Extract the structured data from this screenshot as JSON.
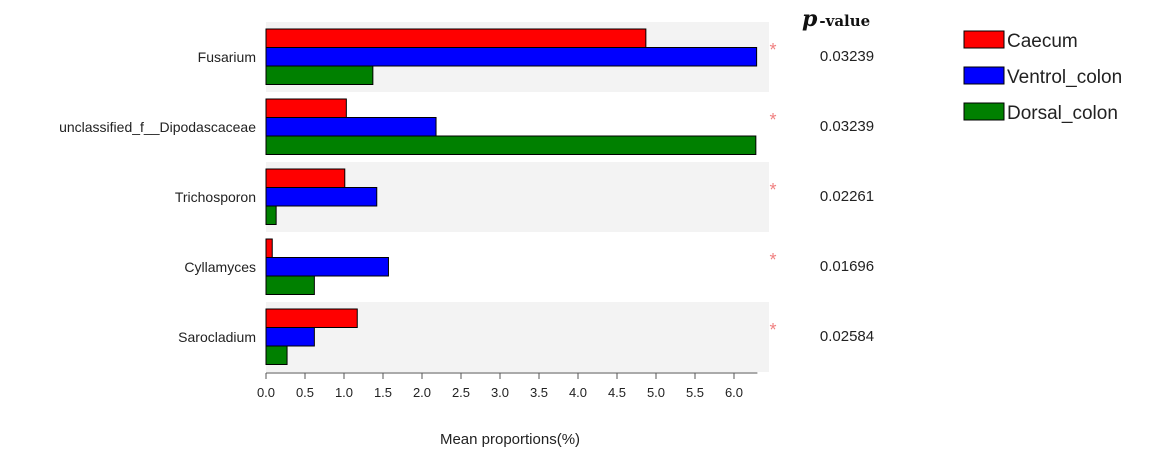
{
  "chart_data": {
    "type": "bar",
    "orientation": "horizontal",
    "categories": [
      "Fusarium",
      "unclassified_f__Dipodascaceae",
      "Trichosporon",
      "Cyllamyces",
      "Sarocladium"
    ],
    "series": [
      {
        "name": "Caecum",
        "color": "#ff0000",
        "values": [
          4.87,
          1.03,
          1.01,
          0.08,
          1.17
        ]
      },
      {
        "name": "Ventrol_colon",
        "color": "#0000ff",
        "values": [
          6.29,
          2.18,
          1.42,
          1.57,
          0.62
        ]
      },
      {
        "name": "Dorsal_colon",
        "color": "#008000",
        "values": [
          1.37,
          6.28,
          0.13,
          0.62,
          0.27
        ]
      }
    ],
    "p_values": [
      "0.03239",
      "0.03239",
      "0.02261",
      "0.01696",
      "0.02584"
    ],
    "significance_marker": "*",
    "p_header_symbol": "p",
    "p_header_text": "-value",
    "xlabel": "Mean proportions(%)",
    "xlim": [
      0,
      6.3
    ],
    "xticks": [
      "0.0",
      "0.5",
      "1.0",
      "1.5",
      "2.0",
      "2.5",
      "3.0",
      "3.5",
      "4.0",
      "4.5",
      "5.0",
      "5.5",
      "6.0"
    ],
    "legend_position": "top-right",
    "band_color": "#f3f3f3"
  }
}
